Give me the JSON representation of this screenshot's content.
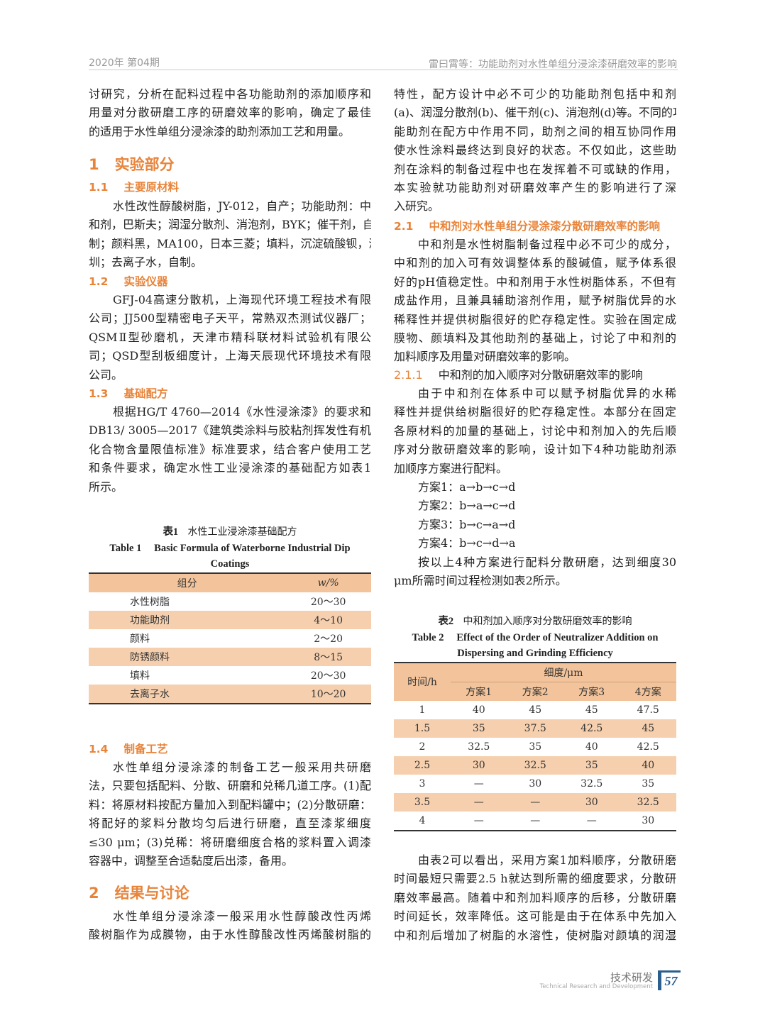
{
  "header": {
    "issue": "2020年 第04期",
    "running_title": "雷曰霄等：功能助剂对水性单组分浸涂漆研磨效率的影响"
  },
  "left": {
    "p0": [
      "讨研究，分析在配料过程中各功能助剂的添加顺序和",
      "用量对分散研磨工序的研磨效率的影响，确定了最佳",
      "的适用于水性单组分浸涂漆的助剂添加工艺和用量。"
    ],
    "s1": {
      "num": "1",
      "title": "实验部分"
    },
    "s11": {
      "num": "1.1",
      "title": "主要原材料"
    },
    "p11": [
      "水性改性醇酸树脂，JY-012，自产；功能助剂：中",
      "和剂，巴斯夫；润湿分散剂、消泡剂，BYK；催干剂，自",
      "制；颜料黑，MA100，日本三菱；填料，沉淀硫酸钡，深",
      "圳；去离子水，自制。"
    ],
    "s12": {
      "num": "1.2",
      "title": "实验仪器"
    },
    "p12": [
      "GFJ-04高速分散机，上海现代环境工程技术有限",
      "公司；JJ500型精密电子天平，常熟双杰测试仪器厂；",
      "QSMⅡ型砂磨机，天津市精科联材料试验机有限公",
      "司；QSD型刮板细度计，上海天辰现代环境技术有限",
      "公司。"
    ],
    "s13": {
      "num": "1.3",
      "title": "基础配方"
    },
    "p13": [
      "根据HG/T 4760—2014《水性浸涂漆》的要求和",
      "DB13/ 3005—2017《建筑类涂料与胶粘剂挥发性有机",
      "化合物含量限值标准》标准要求，结合客户使用工艺",
      "和条件要求，确定水性工业浸涂漆的基础配方如表1",
      "所示。"
    ],
    "table1": {
      "caption_cn_label": "表1",
      "caption_cn": "水性工业浸涂漆基础配方",
      "caption_en_label": "Table 1",
      "caption_en": "Basic Formula of Waterborne Industrial Dip",
      "caption_en2": "Coatings",
      "headers": [
        "组分",
        "w/%"
      ],
      "rows": [
        [
          "水性树脂",
          "20～30"
        ],
        [
          "功能助剂",
          "4～10"
        ],
        [
          "颜料",
          "2～20"
        ],
        [
          "防锈颜料",
          "8～15"
        ],
        [
          "填料",
          "20～30"
        ],
        [
          "去离子水",
          "10～20"
        ]
      ]
    },
    "s14": {
      "num": "1.4",
      "title": "制备工艺"
    },
    "p14": [
      "水性单组分浸涂漆的制备工艺一般采用共研磨",
      "法，只要包括配料、分散、研磨和兑稀几道工序。(1)配",
      "料：将原材料按配方量加入到配料罐中；(2)分散研磨：",
      "将配好的浆料分散均匀后进行研磨，直至漆浆细度",
      "≤30 μm；(3)兑稀：将研磨细度合格的浆料置入调漆",
      "容器中，调整至合适黏度后出漆，备用。"
    ],
    "s2": {
      "num": "2",
      "title": "结果与讨论"
    },
    "p2": [
      "水性单组分浸涂漆一般采用水性醇酸改性丙烯",
      "酸树脂作为成膜物，由于水性醇酸改性丙烯酸树脂的"
    ]
  },
  "right": {
    "p0": [
      "特性，配方设计中必不可少的功能助剂包括中和剂",
      "(a)、润湿分散剂(b)、催干剂(c)、消泡剂(d)等。不同的功",
      "能助剂在配方中作用不同，助剂之间的相互协同作用",
      "使水性涂料最终达到良好的状态。不仅如此，这些助",
      "剂在涂料的制备过程中也在发挥着不可或缺的作用，",
      "本实验就功能助剂对研磨效率产生的影响进行了深",
      "入研究。"
    ],
    "s21": {
      "num": "2.1",
      "title": "中和剂对水性单组分浸涂漆分散研磨效率的影响"
    },
    "p21": [
      "中和剂是水性树脂制备过程中必不可少的成分，",
      "中和剂的加入可有效调整体系的酸碱值，赋予体系很",
      "好的pH值稳定性。中和剂用于水性树脂体系，不但有",
      "成盐作用，且兼具辅助溶剂作用，赋予树脂优异的水",
      "稀释性并提供树脂很好的贮存稳定性。实验在固定成",
      "膜物、颜填料及其他助剂的基础上，讨论了中和剂的",
      "加料顺序及用量对研磨效率的影响。"
    ],
    "s211": {
      "num": "2.1.1",
      "title": "中和剂的加入顺序对分散研磨效率的影响"
    },
    "p211": [
      "由于中和剂在体系中可以赋予树脂优异的水稀",
      "释性并提供给树脂很好的贮存稳定性。本部分在固定",
      "各原材料的加量的基础上，讨论中和剂加入的先后顺",
      "序对分散研磨效率的影响，设计如下4种功能助剂添",
      "加顺序方案进行配料。"
    ],
    "schemes": [
      "方案1：a→b→c→d",
      "方案2：b→a→c→d",
      "方案3：b→c→a→d",
      "方案4：b→c→d→a"
    ],
    "p211b": [
      "按以上4种方案进行配料分散研磨，达到细度30",
      "μm所需时间过程检测如表2所示。"
    ],
    "table2": {
      "caption_cn_label": "表2",
      "caption_cn": "中和剂加入顺序对分散研磨效率的影响",
      "caption_en_label": "Table 2",
      "caption_en": "Effect of the Order of Neutralizer Addition on",
      "caption_en2": "Dispersing and Grinding Efficiency",
      "time_header": "时间/h",
      "group_header": "细度/μm",
      "headers": [
        "方案1",
        "方案2",
        "方案3",
        "4方案"
      ],
      "rows": [
        [
          "1",
          "40",
          "45",
          "45",
          "47.5"
        ],
        [
          "1.5",
          "35",
          "37.5",
          "42.5",
          "45"
        ],
        [
          "2",
          "32.5",
          "35",
          "40",
          "42.5"
        ],
        [
          "2.5",
          "30",
          "32.5",
          "35",
          "40"
        ],
        [
          "3",
          "—",
          "30",
          "32.5",
          "35"
        ],
        [
          "3.5",
          "—",
          "—",
          "30",
          "32.5"
        ],
        [
          "4",
          "—",
          "—",
          "—",
          "30"
        ]
      ]
    },
    "p22": [
      "由表2可以看出，采用方案1加料顺序，分散研磨",
      "时间最短只需要2.5 h就达到所需的细度要求，分散研",
      "磨效率最高。随着中和剂加料顺序的后移，分散研磨",
      "时间延长，效率降低。这可能是由于在体系中先加入",
      "中和剂后增加了树脂的水溶性，使树脂对颜填的润湿"
    ]
  },
  "footer": {
    "section_cn": "技术研发",
    "section_en": "Technical Research and Development",
    "page": "57"
  },
  "colors": {
    "accent": "#e8843a",
    "table_header": "#f3c49b",
    "table_shade": "#f6d0ae",
    "page_box": "#2b5f8e"
  }
}
